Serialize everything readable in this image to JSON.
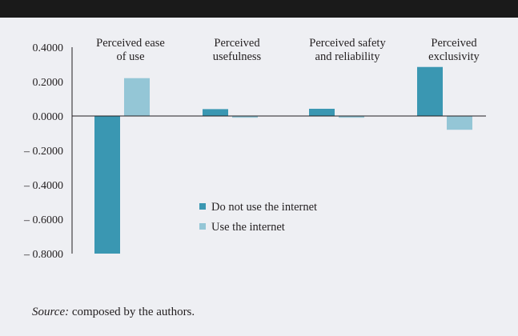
{
  "header": {
    "title": ""
  },
  "chart_data": {
    "type": "bar",
    "categories": [
      [
        "Perceived ease",
        "of use"
      ],
      [
        "Perceived",
        "usefulness"
      ],
      [
        "Perceived safety",
        "and reliability"
      ],
      [
        "Perceived",
        "exclusivity"
      ]
    ],
    "series": [
      {
        "name": "Do not use the internet",
        "color": "#3a97b2",
        "values": [
          -0.8,
          0.04,
          0.042,
          0.285
        ]
      },
      {
        "name": "Use the internet",
        "color": "#94c6d6",
        "values": [
          0.22,
          -0.01,
          -0.01,
          -0.08
        ]
      }
    ],
    "yticks": [
      "0.4000",
      "0.2000",
      "0.0000",
      "– 0.2000",
      "– 0.4000",
      "– 0.6000",
      "– 0.8000"
    ],
    "ytick_values": [
      0.4,
      0.2,
      0,
      -0.2,
      -0.4,
      -0.6,
      -0.8
    ],
    "ylim": [
      -0.8,
      0.4
    ],
    "grid": false,
    "legend_position": "center-bottom",
    "title": "",
    "xlabel": "",
    "ylabel": ""
  },
  "source": {
    "label": "Source:",
    "text": " composed by the authors."
  }
}
